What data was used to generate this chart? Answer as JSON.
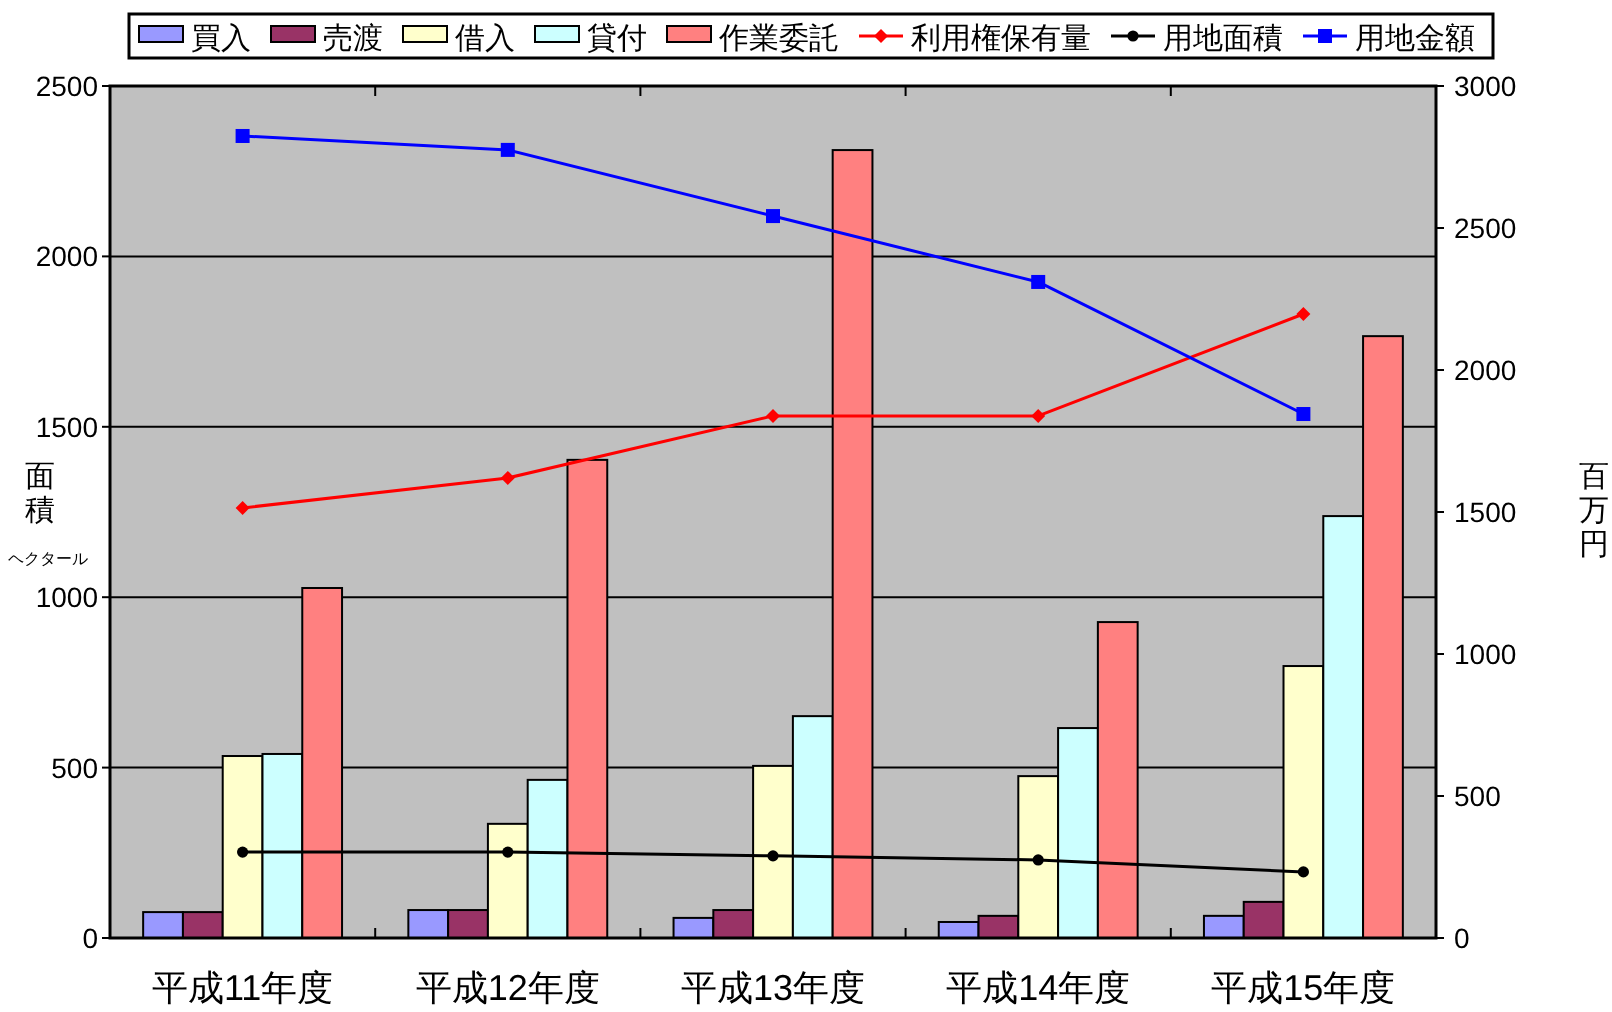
{
  "chart_data": {
    "type": "bar",
    "categories": [
      "平成11年度",
      "平成12年度",
      "平成13年度",
      "平成14年度",
      "平成15年度"
    ],
    "ylabel": "面積",
    "y2label": "百万円",
    "annotations": [
      "ヘクタール"
    ],
    "ylim": [
      0,
      2500
    ],
    "yticks": [
      0,
      500,
      1000,
      1500,
      2000,
      2500
    ],
    "y2lim": [
      0,
      3000
    ],
    "y2ticks": [
      0,
      500,
      1000,
      1500,
      2000,
      2500,
      3000
    ],
    "grid": "y",
    "legend": "top",
    "series": [
      {
        "name": "買入",
        "color": "#9999ff",
        "values": [
          76,
          82,
          59,
          47,
          65
        ]
      },
      {
        "name": "売渡",
        "color": "#993366",
        "values": [
          76,
          82,
          82,
          65,
          106
        ]
      },
      {
        "name": "借入",
        "color": "#ffffcc",
        "values": [
          534,
          335,
          505,
          475,
          798
        ]
      },
      {
        "name": "貸付",
        "color": "#ccffff",
        "values": [
          540,
          464,
          651,
          616,
          1238
        ]
      },
      {
        "name": "作業委託",
        "color": "#ff8080",
        "values": [
          1027,
          1403,
          2312,
          927,
          1766
        ]
      },
      {
        "name": "利用権保有量",
        "type": "line",
        "color": "#ff0000",
        "marker": "diamond",
        "values": [
          1262,
          1350,
          1532,
          1532,
          1831
        ]
      },
      {
        "name": "用地面積",
        "type": "line",
        "color": "#000000",
        "marker": "circle",
        "values": [
          252,
          252,
          241,
          229,
          194
        ]
      },
      {
        "name": "用地金額",
        "type": "line",
        "axis": "y2",
        "color": "#0000ff",
        "marker": "square",
        "values": [
          2824,
          2775,
          2542,
          2310,
          1845
        ]
      }
    ]
  }
}
